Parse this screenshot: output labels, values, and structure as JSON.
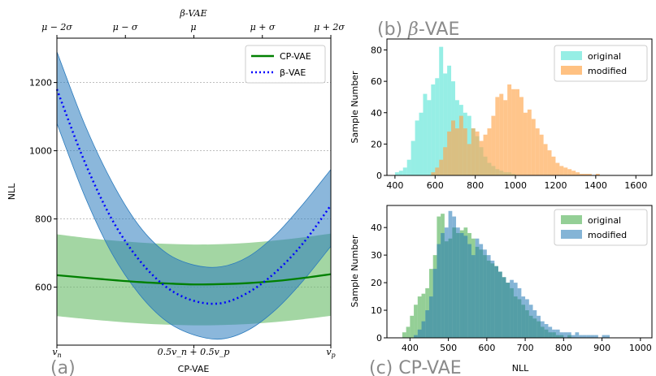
{
  "panels": {
    "a": "(a)",
    "b_prefix": "(b) ",
    "b_beta": "β",
    "b_suffix": "-VAE",
    "c": "(c) CP-VAE"
  },
  "chart_data": [
    {
      "id": "a",
      "type": "line",
      "xlabel": "CP-VAE",
      "top_xlabel": "β-VAE",
      "ylabel": "NLL",
      "xlim": [
        0,
        1
      ],
      "ylim": [
        430,
        1330
      ],
      "yticks": [
        600,
        800,
        1000,
        1200
      ],
      "xticks_bottom": [
        {
          "x": 0,
          "label": "v_n",
          "sub": "n",
          "base": "v"
        },
        {
          "x": 0.5,
          "label": "0.5v_n + 0.5v_p"
        },
        {
          "x": 1,
          "label": "v_p",
          "sub": "p",
          "base": "v"
        }
      ],
      "xticks_top": [
        {
          "x": 0,
          "label": "μ − 2σ"
        },
        {
          "x": 0.25,
          "label": "μ − σ"
        },
        {
          "x": 0.5,
          "label": "μ"
        },
        {
          "x": 0.75,
          "label": "μ + σ"
        },
        {
          "x": 1,
          "label": "μ + 2σ"
        }
      ],
      "grid": "horizontal",
      "legend_position": "top-right",
      "colors": {
        "cp": "#008000",
        "beta": "#0000ff",
        "cp_band": "#66bb66",
        "beta_band": "#2b7bbd"
      },
      "series": [
        {
          "name": "CP-VAE",
          "style": "solid",
          "x": [
            0,
            0.1,
            0.2,
            0.3,
            0.4,
            0.5,
            0.6,
            0.7,
            0.8,
            0.9,
            1.0
          ],
          "y": [
            635,
            628,
            621,
            615,
            611,
            608,
            609,
            612,
            618,
            627,
            638
          ],
          "upper": [
            755,
            745,
            737,
            731,
            727,
            725,
            726,
            730,
            737,
            746,
            757
          ],
          "lower": [
            515,
            507,
            500,
            494,
            490,
            488,
            489,
            492,
            498,
            506,
            516
          ]
        },
        {
          "name": "β-VAE",
          "style": "dotted",
          "x": [
            0,
            0.1,
            0.2,
            0.3,
            0.4,
            0.5,
            0.6,
            0.7,
            0.8,
            0.9,
            1.0
          ],
          "y": [
            1180,
            970,
            800,
            680,
            600,
            560,
            553,
            585,
            645,
            730,
            840
          ],
          "upper": [
            1290,
            1080,
            910,
            780,
            700,
            665,
            660,
            690,
            755,
            845,
            945
          ],
          "lower": [
            1080,
            870,
            700,
            580,
            500,
            460,
            448,
            475,
            535,
            620,
            720
          ]
        }
      ]
    },
    {
      "id": "b",
      "type": "histogram",
      "ylabel": "Sample Number",
      "xlim": [
        360,
        1680
      ],
      "ylim": [
        0,
        87
      ],
      "xticks": [
        400,
        600,
        800,
        1000,
        1200,
        1400,
        1600
      ],
      "yticks": [
        0,
        20,
        40,
        60,
        80
      ],
      "legend_position": "top-right",
      "series": [
        {
          "name": "original",
          "color": "#40e0d0",
          "bin_start": 400,
          "bin_width": 20,
          "counts": [
            2,
            3,
            5,
            10,
            22,
            35,
            40,
            52,
            48,
            58,
            62,
            82,
            65,
            70,
            60,
            48,
            45,
            40,
            38,
            30,
            25,
            18,
            12,
            8,
            6,
            4,
            3,
            2,
            2,
            1
          ]
        },
        {
          "name": "modified",
          "color": "#ffa64d",
          "bin_start": 580,
          "bin_width": 20,
          "counts": [
            2,
            5,
            10,
            18,
            28,
            35,
            30,
            38,
            30,
            20,
            30,
            28,
            22,
            26,
            30,
            38,
            50,
            52,
            48,
            58,
            55,
            55,
            50,
            40,
            42,
            36,
            30,
            26,
            20,
            16,
            12,
            8,
            6,
            5,
            4,
            3,
            2,
            1,
            1,
            1,
            0,
            1
          ]
        }
      ]
    },
    {
      "id": "c",
      "type": "histogram",
      "xlabel": "NLL",
      "ylabel": "Sample Number",
      "xlim": [
        340,
        1030
      ],
      "ylim": [
        0,
        48
      ],
      "xticks": [
        400,
        500,
        600,
        700,
        800,
        900,
        1000
      ],
      "yticks": [
        0,
        10,
        20,
        30,
        40
      ],
      "legend_position": "top-right",
      "series": [
        {
          "name": "original",
          "color": "#4caf50",
          "bin_start": 380,
          "bin_width": 10,
          "counts": [
            2,
            4,
            8,
            12,
            15,
            16,
            18,
            25,
            30,
            44,
            45,
            35,
            36,
            40,
            38,
            39,
            40,
            38,
            36,
            33,
            32,
            30,
            28,
            27,
            26,
            24,
            22,
            20,
            18,
            15,
            14,
            12,
            10,
            8,
            7,
            6,
            4,
            3,
            2,
            2,
            1,
            1,
            0,
            1,
            0,
            0,
            0,
            0,
            0,
            0
          ]
        },
        {
          "name": "modified",
          "color": "#1f77b4",
          "bin_start": 410,
          "bin_width": 10,
          "counts": [
            1,
            3,
            6,
            10,
            15,
            25,
            34,
            38,
            40,
            46,
            44,
            40,
            38,
            37,
            34,
            30,
            36,
            34,
            32,
            30,
            28,
            26,
            24,
            22,
            20,
            21,
            20,
            18,
            15,
            14,
            12,
            10,
            8,
            6,
            5,
            4,
            3,
            3,
            2,
            2,
            2,
            1,
            2,
            1,
            1,
            1,
            1,
            1,
            0,
            1,
            1
          ]
        }
      ]
    }
  ]
}
